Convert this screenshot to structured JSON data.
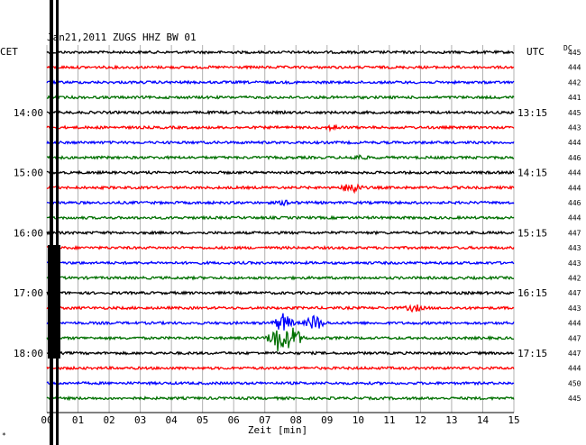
{
  "chart_data": {
    "type": "line",
    "title": "Jan21,2011   ZUGS HHZ BW 01",
    "left_label": "CET",
    "right_label": "UTC",
    "dc_label": "DC",
    "xlabel": "Zeit [min]",
    "footnote": "*",
    "x_ticks": [
      "00",
      "01",
      "02",
      "03",
      "04",
      "05",
      "06",
      "07",
      "08",
      "09",
      "10",
      "11",
      "12",
      "13",
      "14",
      "15"
    ],
    "xlim": [
      0,
      15
    ],
    "trace_colors": [
      "#000000",
      "#ff0000",
      "#0000ff",
      "#007000"
    ],
    "hour_labels_left": [
      {
        "trace": 4,
        "label": "14:00"
      },
      {
        "trace": 8,
        "label": "15:00"
      },
      {
        "trace": 12,
        "label": "16:00"
      },
      {
        "trace": 16,
        "label": "17:00"
      },
      {
        "trace": 20,
        "label": "18:00"
      }
    ],
    "hour_labels_right": [
      {
        "trace": 4,
        "label": "13:15"
      },
      {
        "trace": 8,
        "label": "14:15"
      },
      {
        "trace": 12,
        "label": "15:15"
      },
      {
        "trace": 16,
        "label": "16:15"
      },
      {
        "trace": 20,
        "label": "17:15"
      }
    ],
    "dc_values": [
      "445",
      "444",
      "442",
      "441",
      "445",
      "443",
      "444",
      "446",
      "444",
      "444",
      "446",
      "444",
      "447",
      "443",
      "443",
      "442",
      "447",
      "443",
      "444",
      "447",
      "447",
      "444",
      "450",
      "445"
    ],
    "events": [
      {
        "trace": 5,
        "minute": 9.2,
        "amplitude": 2
      },
      {
        "trace": 7,
        "minute": 10.0,
        "amplitude": 2
      },
      {
        "trace": 9,
        "minute": 9.8,
        "amplitude": 6
      },
      {
        "trace": 10,
        "minute": 7.7,
        "amplitude": 2
      },
      {
        "trace": 17,
        "minute": 11.8,
        "amplitude": 3
      },
      {
        "trace": 18,
        "minute": 7.6,
        "amplitude": 10
      },
      {
        "trace": 18,
        "minute": 8.6,
        "amplitude": 8
      },
      {
        "trace": 19,
        "minute": 7.4,
        "amplitude": 14
      },
      {
        "trace": 19,
        "minute": 7.9,
        "amplitude": 12
      }
    ]
  }
}
